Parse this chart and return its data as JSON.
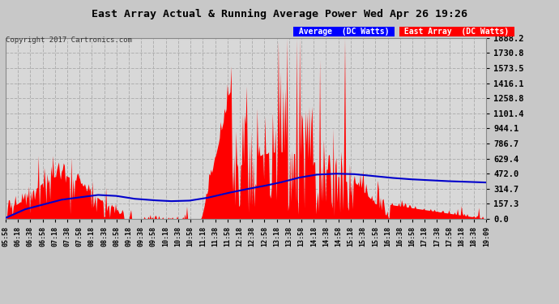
{
  "title": "East Array Actual & Running Average Power Wed Apr 26 19:26",
  "copyright": "Copyright 2017 Cartronics.com",
  "legend_avg": "Average  (DC Watts)",
  "legend_east": "East Array  (DC Watts)",
  "yticks": [
    0.0,
    157.3,
    314.7,
    472.0,
    629.4,
    786.7,
    944.1,
    1101.4,
    1258.8,
    1416.1,
    1573.5,
    1730.8,
    1888.2
  ],
  "ymax": 1888.2,
  "ymin": 0.0,
  "bg_color": "#c8c8c8",
  "plot_bg_color": "#d8d8d8",
  "bar_color": "#ff0000",
  "avg_color": "#0000cc",
  "title_color": "#000000",
  "grid_color": "#b0b0b0",
  "x_tick_labels": [
    "05:58",
    "06:18",
    "06:38",
    "06:58",
    "07:18",
    "07:38",
    "07:58",
    "08:18",
    "08:38",
    "08:58",
    "09:18",
    "09:38",
    "09:58",
    "10:18",
    "10:38",
    "10:58",
    "11:18",
    "11:38",
    "11:58",
    "12:18",
    "12:38",
    "12:58",
    "13:18",
    "13:38",
    "13:58",
    "14:18",
    "14:38",
    "14:58",
    "15:18",
    "15:38",
    "15:58",
    "16:18",
    "16:38",
    "16:58",
    "17:18",
    "17:38",
    "17:58",
    "18:18",
    "18:38",
    "19:09"
  ]
}
